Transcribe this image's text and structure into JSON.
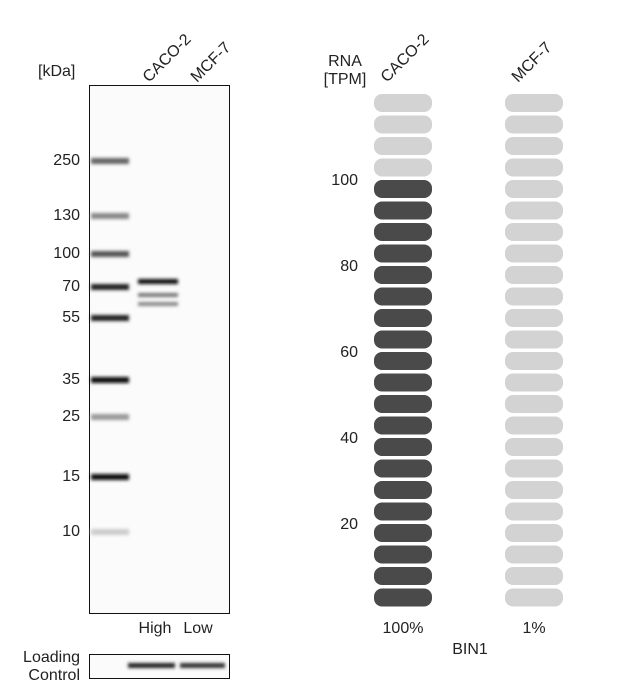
{
  "western_blot": {
    "unit": "[kDa]",
    "lanes": [
      "CACO-2",
      "MCF-7"
    ],
    "markers": [
      "250",
      "130",
      "100",
      "70",
      "55",
      "35",
      "25",
      "15",
      "10"
    ],
    "levels": [
      "High",
      "Low"
    ],
    "loading_control": [
      "Loading",
      "Control"
    ]
  },
  "rna": {
    "axis_label": [
      "RNA",
      "[TPM]"
    ],
    "ticks": [
      "100",
      "80",
      "60",
      "40",
      "20"
    ],
    "samples": [
      {
        "name": "CACO-2",
        "label": "100%"
      },
      {
        "name": "MCF-7",
        "label": "1%"
      }
    ],
    "gene": "BIN1"
  }
}
